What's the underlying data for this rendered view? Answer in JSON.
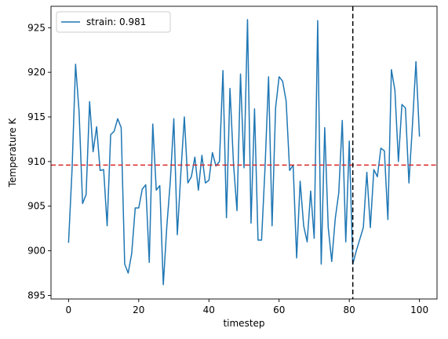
{
  "chart_data": {
    "type": "line",
    "title": "",
    "xlabel": "timestep",
    "ylabel": "Temperature K",
    "xlim": [
      -5,
      105
    ],
    "ylim": [
      894.6,
      927.4
    ],
    "xticks": [
      0,
      20,
      40,
      60,
      80,
      100
    ],
    "yticks": [
      895,
      900,
      905,
      910,
      915,
      920,
      925
    ],
    "grid": false,
    "legend_position": "top-left",
    "hline": {
      "y": 909.6,
      "color": "#d62728",
      "style": "dashed"
    },
    "vline": {
      "x": 81,
      "color": "#000000",
      "style": "dashed"
    },
    "series": [
      {
        "name": "strain: 0.981",
        "color": "#1f77b4",
        "x": [
          0,
          1,
          2,
          3,
          4,
          5,
          6,
          7,
          8,
          9,
          10,
          11,
          12,
          13,
          14,
          15,
          16,
          17,
          18,
          19,
          20,
          21,
          22,
          23,
          24,
          25,
          26,
          27,
          28,
          29,
          30,
          31,
          32,
          33,
          34,
          35,
          36,
          37,
          38,
          39,
          40,
          41,
          42,
          43,
          44,
          45,
          46,
          47,
          48,
          49,
          50,
          51,
          52,
          53,
          54,
          55,
          56,
          57,
          58,
          59,
          60,
          61,
          62,
          63,
          64,
          65,
          66,
          67,
          68,
          69,
          70,
          71,
          72,
          73,
          74,
          75,
          76,
          77,
          78,
          79,
          80,
          81,
          82,
          83,
          84,
          85,
          86,
          87,
          88,
          89,
          90,
          91,
          92,
          93,
          94,
          95,
          96,
          97,
          98,
          99,
          100
        ],
        "values": [
          900.9,
          909.1,
          920.9,
          915.6,
          905.3,
          906.3,
          916.7,
          911.1,
          913.9,
          909.0,
          909.1,
          902.8,
          913.0,
          913.4,
          914.8,
          913.8,
          898.5,
          897.5,
          899.7,
          904.8,
          904.8,
          906.9,
          907.4,
          898.7,
          914.2,
          906.8,
          907.3,
          896.2,
          902.7,
          907.8,
          914.8,
          901.8,
          908.7,
          915.0,
          907.6,
          908.3,
          910.5,
          906.8,
          910.7,
          907.6,
          907.9,
          911.0,
          909.5,
          910.0,
          920.2,
          903.7,
          918.2,
          909.8,
          904.5,
          919.8,
          909.3,
          925.9,
          903.1,
          915.9,
          901.2,
          901.2,
          909.4,
          919.5,
          902.8,
          916.0,
          919.5,
          919.0,
          916.8,
          909.0,
          909.6,
          899.2,
          907.8,
          902.8,
          901.0,
          906.7,
          901.4,
          925.8,
          898.5,
          913.8,
          902.6,
          898.8,
          903.6,
          906.5,
          914.6,
          901.0,
          912.3,
          898.5,
          900.0,
          901.3,
          902.6,
          908.8,
          902.6,
          909.1,
          908.3,
          911.5,
          911.2,
          903.5,
          920.3,
          918.0,
          910.0,
          916.4,
          916.0,
          907.6,
          914.1,
          921.2,
          912.8
        ]
      }
    ]
  }
}
